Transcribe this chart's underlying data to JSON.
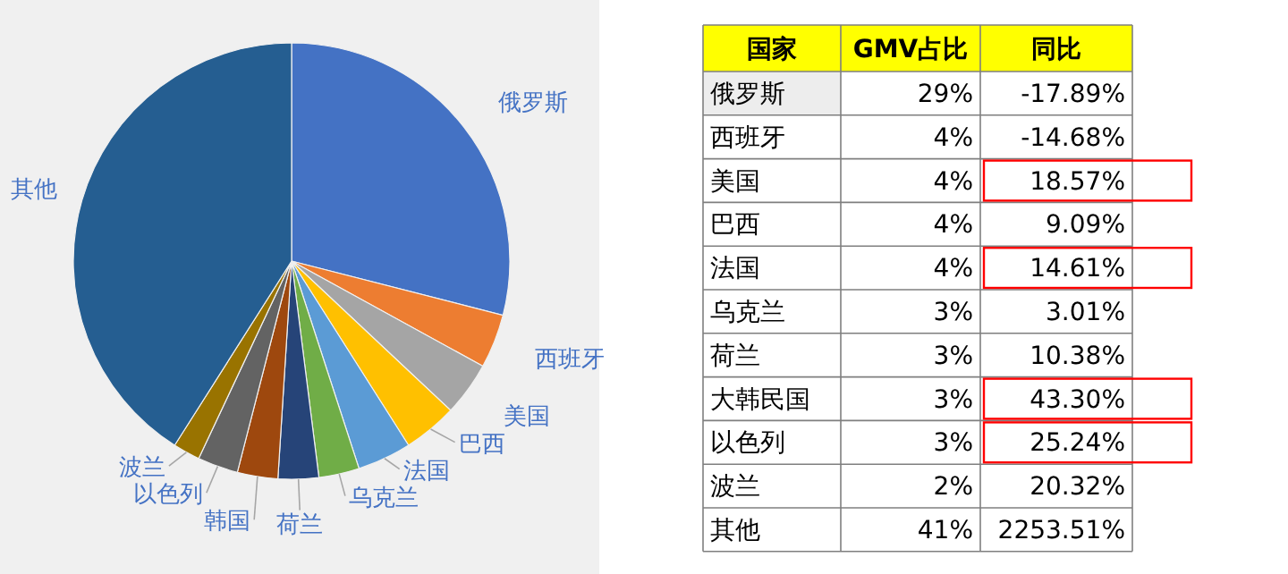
{
  "chart_data": [
    {
      "type": "pie",
      "categories": [
        "俄罗斯",
        "西班牙",
        "美国",
        "巴西",
        "法国",
        "乌克兰",
        "荷兰",
        "韩国",
        "以色列",
        "波兰",
        "其他"
      ],
      "values": [
        29,
        4,
        4,
        4,
        4,
        3,
        3,
        3,
        3,
        2,
        41
      ],
      "colors": [
        "#4472c4",
        "#ed7d31",
        "#a5a5a5",
        "#ffc000",
        "#5b9bd5",
        "#70ad47",
        "#264478",
        "#9e480e",
        "#636363",
        "#997300",
        "#255e91"
      ]
    },
    {
      "type": "other",
      "xlabel": "国家",
      "categories": [
        "俄罗斯",
        "西班牙",
        "美国",
        "巴西",
        "法国",
        "乌克兰",
        "荷兰",
        "大韩民国",
        "以色列",
        "波兰",
        "其他"
      ],
      "series": [
        {
          "name": "GMV占比",
          "values": [
            29,
            4,
            4,
            4,
            4,
            3,
            3,
            3,
            3,
            2,
            41
          ],
          "value_labels": [
            "29%",
            "4%",
            "4%",
            "4%",
            "4%",
            "3%",
            "3%",
            "3%",
            "3%",
            "2%",
            "41%"
          ]
        },
        {
          "name": "同比",
          "values": [
            -17.89,
            -14.68,
            18.57,
            9.09,
            14.61,
            3.01,
            10.38,
            43.3,
            25.24,
            20.32,
            2253.51
          ],
          "value_labels": [
            "-17.89%",
            "-14.68%",
            "18.57%",
            "9.09%",
            "14.61%",
            "3.01%",
            "10.38%",
            "43.30%",
            "25.24%",
            "20.32%",
            "2253.51%"
          ],
          "colors": [
            null,
            null,
            "#ff0000",
            null,
            "#ff0000",
            null,
            null,
            "#ff0000",
            "#ff0000",
            null,
            null
          ]
        }
      ]
    }
  ]
}
